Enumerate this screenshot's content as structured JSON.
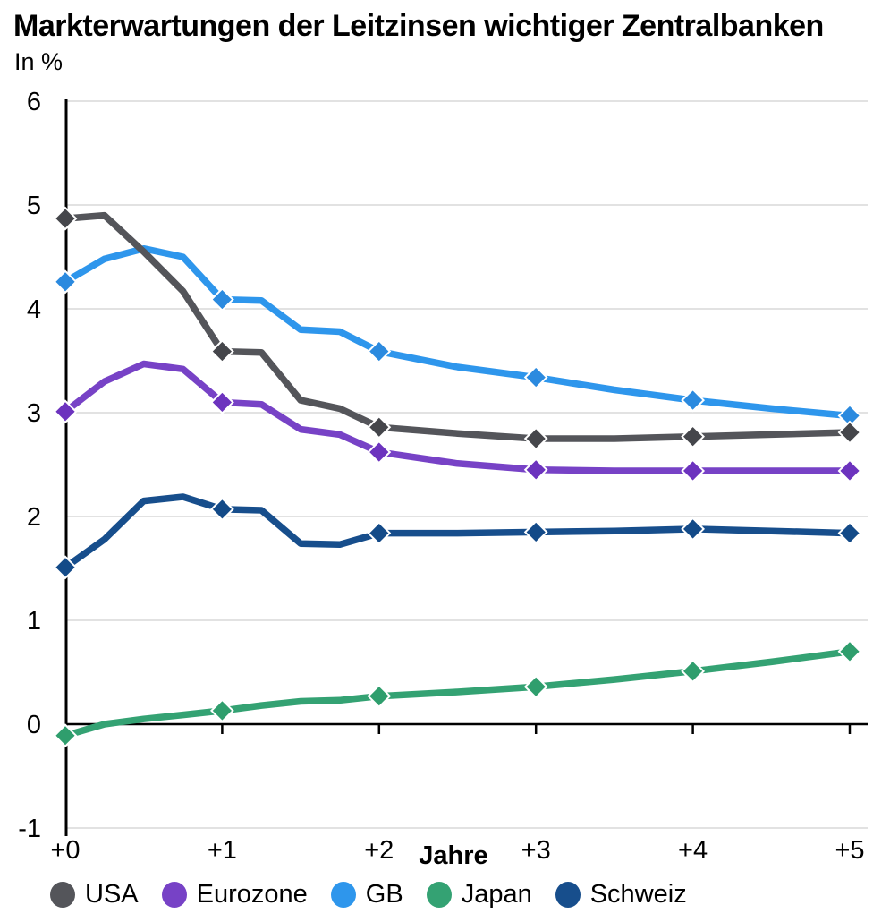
{
  "title": "Markterwartungen der Leitzinsen wichtiger Zentralbanken",
  "subtitle": "In %",
  "chart_data": {
    "type": "line",
    "title": "Markterwartungen der Leitzinsen wichtiger Zentralbanken",
    "subtitle": "In %",
    "xlabel": "Jahre",
    "ylabel": "",
    "xlim": [
      0,
      5
    ],
    "ylim": [
      -1,
      6
    ],
    "grid": "horizontal-gridlines",
    "gridline_color": "#D9D9D9",
    "zero_line_color": "#000000",
    "axis_color": "#000000",
    "legend_position": "bottom",
    "marker_shape": "diamond",
    "markers_at_integer_years": true,
    "x_ticks": [
      {
        "label": "+0",
        "value": 0
      },
      {
        "label": "+1",
        "value": 1
      },
      {
        "label": "+2",
        "value": 2
      },
      {
        "label": "+3",
        "value": 3
      },
      {
        "label": "+4",
        "value": 4
      },
      {
        "label": "+5",
        "value": 5
      }
    ],
    "y_ticks": [
      {
        "label": "6",
        "value": 6
      },
      {
        "label": "5",
        "value": 5
      },
      {
        "label": "4",
        "value": 4
      },
      {
        "label": "3",
        "value": 3
      },
      {
        "label": "2",
        "value": 2
      },
      {
        "label": "1",
        "value": 1
      },
      {
        "label": "0",
        "value": 0
      },
      {
        "label": "-1",
        "value": -1
      }
    ],
    "x": [
      0,
      0.25,
      0.5,
      0.75,
      1,
      1.25,
      1.5,
      1.75,
      2,
      2.5,
      3,
      3.5,
      4,
      4.5,
      5
    ],
    "series": [
      {
        "name": "USA",
        "color": "#54555A",
        "marker_color": "#45464B",
        "values": [
          4.87,
          4.9,
          4.55,
          4.17,
          3.59,
          3.58,
          3.12,
          3.04,
          2.86,
          2.8,
          2.75,
          2.75,
          2.77,
          2.79,
          2.81
        ],
        "year_marker_values": [
          4.87,
          3.59,
          2.86,
          2.75,
          2.77,
          2.81
        ]
      },
      {
        "name": "Eurozone",
        "color": "#7742C6",
        "marker_color": "#6C33BE",
        "values": [
          3.01,
          3.3,
          3.47,
          3.42,
          3.1,
          3.08,
          2.84,
          2.79,
          2.62,
          2.51,
          2.45,
          2.44,
          2.44,
          2.44,
          2.44
        ],
        "year_marker_values": [
          3.01,
          3.1,
          2.62,
          2.45,
          2.44,
          2.44
        ]
      },
      {
        "name": "GB",
        "color": "#2E96EC",
        "marker_color": "#2B8ADF",
        "values": [
          4.26,
          4.48,
          4.58,
          4.5,
          4.09,
          4.08,
          3.8,
          3.78,
          3.59,
          3.44,
          3.34,
          3.22,
          3.12,
          3.04,
          2.97
        ],
        "year_marker_values": [
          4.26,
          4.09,
          3.59,
          3.34,
          3.12,
          2.97
        ]
      },
      {
        "name": "Japan",
        "color": "#34A273",
        "marker_color": "#2F9E6D",
        "values": [
          -0.11,
          0.0,
          0.05,
          0.09,
          0.13,
          0.18,
          0.22,
          0.23,
          0.27,
          0.31,
          0.36,
          0.43,
          0.51,
          0.6,
          0.7
        ],
        "year_marker_values": [
          -0.11,
          0.13,
          0.27,
          0.36,
          0.51,
          0.7
        ]
      },
      {
        "name": "Schweiz",
        "color": "#174E8C",
        "marker_color": "#134A88",
        "values": [
          1.51,
          1.78,
          2.15,
          2.19,
          2.07,
          2.06,
          1.74,
          1.73,
          1.84,
          1.84,
          1.85,
          1.86,
          1.88,
          1.86,
          1.84
        ],
        "year_marker_values": [
          1.51,
          2.07,
          1.84,
          1.85,
          1.88,
          1.84
        ]
      }
    ]
  }
}
